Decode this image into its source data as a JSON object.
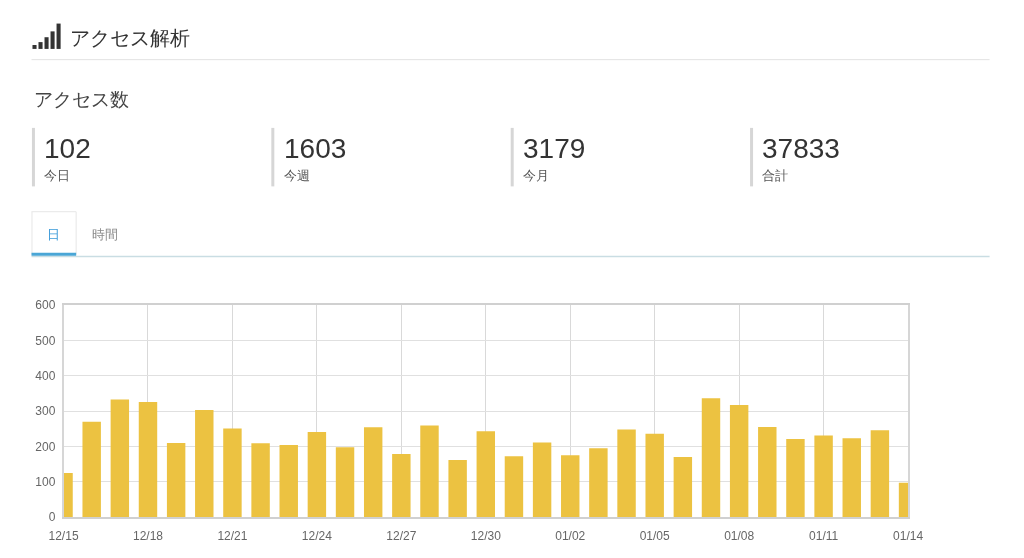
{
  "chart_data": [
    {
      "type": "other",
      "title": "アクセス解析",
      "subtitle": "アクセス数",
      "categories": [
        "今日",
        "今週",
        "今月",
        "合計"
      ],
      "values": [
        102,
        1603,
        3179,
        37833
      ],
      "data_labels": true
    },
    {
      "type": "bar",
      "annotations": [
        "日",
        "時間"
      ],
      "categories": [
        "12/15",
        null,
        null,
        "12/18",
        null,
        null,
        "12/21",
        null,
        null,
        "12/24",
        null,
        null,
        "12/27",
        null,
        null,
        "12/30",
        null,
        null,
        "01/02",
        null,
        null,
        "01/05",
        null,
        null,
        "01/08",
        null,
        null,
        "01/11",
        null,
        null,
        "01/14"
      ],
      "values": [
        125,
        270,
        333,
        326,
        210,
        303,
        251,
        209,
        204,
        241,
        198,
        254,
        179,
        259,
        162,
        243,
        172,
        211,
        175,
        195,
        248,
        236,
        170,
        336,
        317,
        255,
        221,
        231,
        223,
        246,
        97
      ],
      "color": "#ecc241",
      "ylim": [
        0,
        600
      ],
      "yticks": [
        0,
        100,
        200,
        300,
        400,
        500,
        600
      ],
      "grid": true
    }
  ]
}
